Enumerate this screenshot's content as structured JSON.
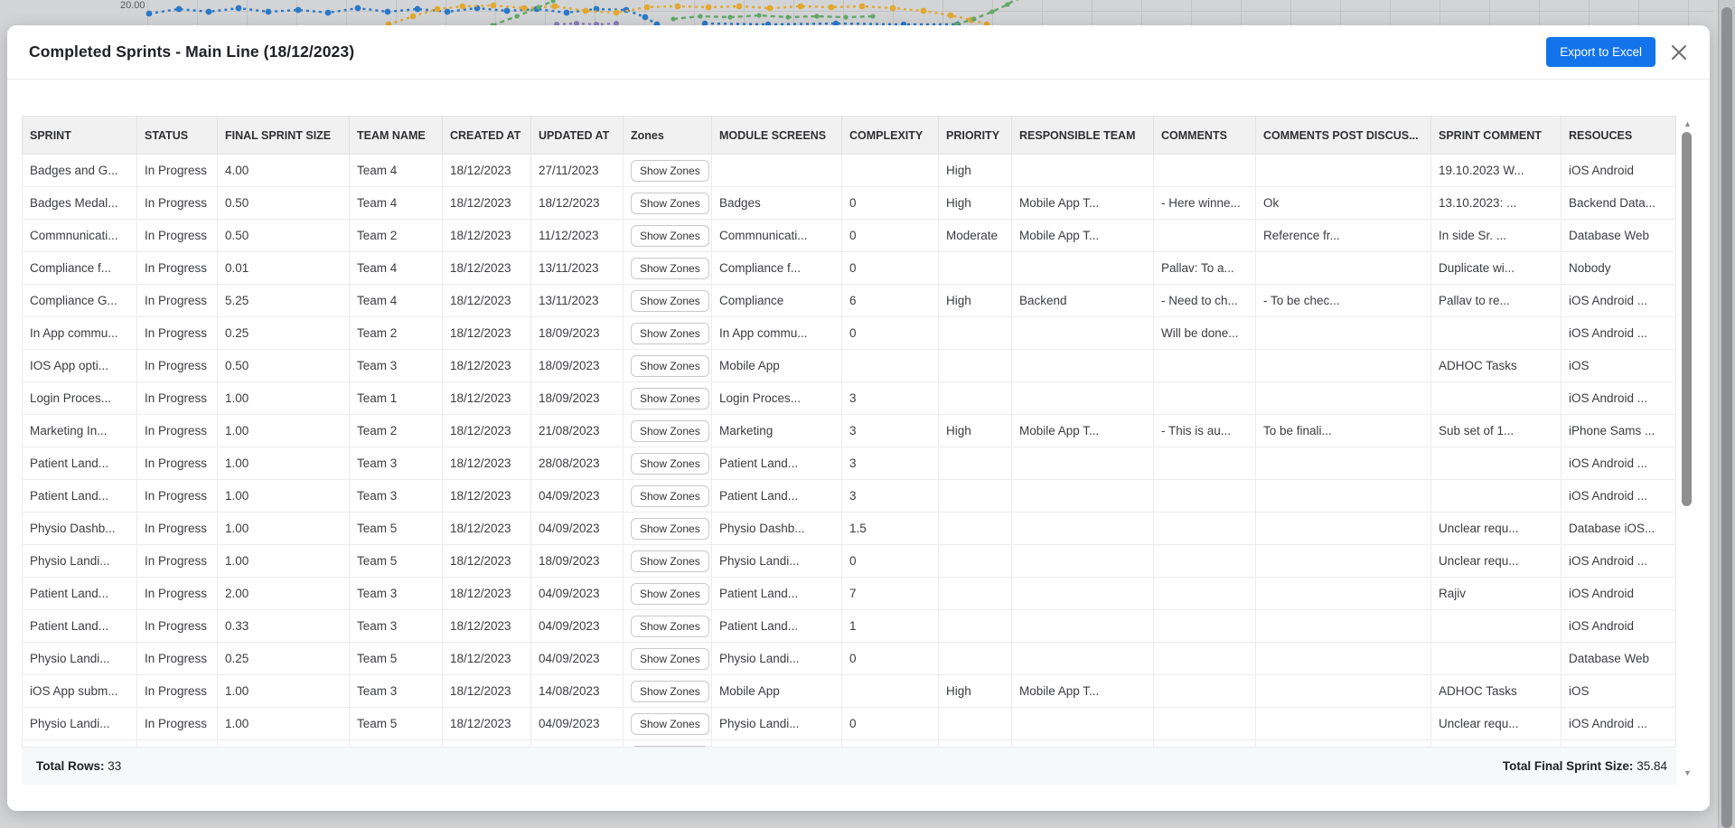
{
  "background_chart": {
    "axis_label": "20.00",
    "series_colors": {
      "blue": "#2979c8",
      "yellow": "#e2a92f",
      "green": "#63a86a",
      "purple": "#8b7fb8"
    }
  },
  "modal": {
    "title": "Completed Sprints - Main Line (18/12/2023)",
    "export_button": "Export to Excel"
  },
  "table": {
    "columns": [
      "SPRINT",
      "STATUS",
      "FINAL SPRINT SIZE",
      "TEAM NAME",
      "CREATED AT",
      "UPDATED AT",
      "Zones",
      "MODULE SCREENS",
      "COMPLEXITY",
      "PRIORITY",
      "RESPONSIBLE TEAM",
      "COMMENTS",
      "COMMENTS POST DISCUS...",
      "SPRINT COMMENT",
      "RESOUCES"
    ],
    "zones_button_label": "Show Zones",
    "has_partial_row": true,
    "rows": [
      {
        "sprint": "Badges and G...",
        "status": "In Progress",
        "final_sprint_size": "4.00",
        "team_name": "Team 4",
        "created_at": "18/12/2023",
        "updated_at": "27/11/2023",
        "module_screens": "",
        "complexity": "",
        "priority": "High",
        "responsible_team": "",
        "comments": "",
        "comments_post_discussion": "",
        "sprint_comment": "19.10.2023 W...",
        "resources": "iOS Android"
      },
      {
        "sprint": "Badges Medal...",
        "status": "In Progress",
        "final_sprint_size": "0.50",
        "team_name": "Team 4",
        "created_at": "18/12/2023",
        "updated_at": "18/12/2023",
        "module_screens": "Badges",
        "complexity": "0",
        "priority": "High",
        "responsible_team": "Mobile App T...",
        "comments": "- Here winne...",
        "comments_post_discussion": "Ok",
        "sprint_comment": "13.10.2023: ...",
        "resources": "Backend Data..."
      },
      {
        "sprint": "Commnunicati...",
        "status": "In Progress",
        "final_sprint_size": "0.50",
        "team_name": "Team 2",
        "created_at": "18/12/2023",
        "updated_at": "11/12/2023",
        "module_screens": "Commnunicati...",
        "complexity": "0",
        "priority": "Moderate",
        "responsible_team": "Mobile App T...",
        "comments": "",
        "comments_post_discussion": "Reference fr...",
        "sprint_comment": "In side Sr. ...",
        "resources": "Database Web"
      },
      {
        "sprint": "Compliance f...",
        "status": "In Progress",
        "final_sprint_size": "0.01",
        "team_name": "Team 4",
        "created_at": "18/12/2023",
        "updated_at": "13/11/2023",
        "module_screens": "Compliance f...",
        "complexity": "0",
        "priority": "",
        "responsible_team": "",
        "comments": "Pallav: To a...",
        "comments_post_discussion": "",
        "sprint_comment": "Duplicate wi...",
        "resources": "Nobody"
      },
      {
        "sprint": "Compliance G...",
        "status": "In Progress",
        "final_sprint_size": "5.25",
        "team_name": "Team 4",
        "created_at": "18/12/2023",
        "updated_at": "13/11/2023",
        "module_screens": "Compliance",
        "complexity": "6",
        "priority": "High",
        "responsible_team": "Backend",
        "comments": "- Need to ch...",
        "comments_post_discussion": "- To be chec...",
        "sprint_comment": "Pallav to re...",
        "resources": "iOS Android ..."
      },
      {
        "sprint": "In App commu...",
        "status": "In Progress",
        "final_sprint_size": "0.25",
        "team_name": "Team 2",
        "created_at": "18/12/2023",
        "updated_at": "18/09/2023",
        "module_screens": "In App commu...",
        "complexity": "0",
        "priority": "",
        "responsible_team": "",
        "comments": "Will be done...",
        "comments_post_discussion": "",
        "sprint_comment": "",
        "resources": "iOS Android ..."
      },
      {
        "sprint": "IOS App opti...",
        "status": "In Progress",
        "final_sprint_size": "0.50",
        "team_name": "Team 3",
        "created_at": "18/12/2023",
        "updated_at": "18/09/2023",
        "module_screens": "Mobile App",
        "complexity": "",
        "priority": "",
        "responsible_team": "",
        "comments": "",
        "comments_post_discussion": "",
        "sprint_comment": "ADHOC Tasks",
        "resources": "iOS"
      },
      {
        "sprint": "Login Proces...",
        "status": "In Progress",
        "final_sprint_size": "1.00",
        "team_name": "Team 1",
        "created_at": "18/12/2023",
        "updated_at": "18/09/2023",
        "module_screens": "Login Proces...",
        "complexity": "3",
        "priority": "",
        "responsible_team": "",
        "comments": "",
        "comments_post_discussion": "",
        "sprint_comment": "",
        "resources": "iOS Android ..."
      },
      {
        "sprint": "Marketing In...",
        "status": "In Progress",
        "final_sprint_size": "1.00",
        "team_name": "Team 2",
        "created_at": "18/12/2023",
        "updated_at": "21/08/2023",
        "module_screens": "Marketing",
        "complexity": "3",
        "priority": "High",
        "responsible_team": "Mobile App T...",
        "comments": "- This is au...",
        "comments_post_discussion": "To be finali...",
        "sprint_comment": "Sub set of 1...",
        "resources": "iPhone Sams ..."
      },
      {
        "sprint": "Patient Land...",
        "status": "In Progress",
        "final_sprint_size": "1.00",
        "team_name": "Team 3",
        "created_at": "18/12/2023",
        "updated_at": "28/08/2023",
        "module_screens": "Patient Land...",
        "complexity": "3",
        "priority": "",
        "responsible_team": "",
        "comments": "",
        "comments_post_discussion": "",
        "sprint_comment": "",
        "resources": "iOS Android ..."
      },
      {
        "sprint": "Patient Land...",
        "status": "In Progress",
        "final_sprint_size": "1.00",
        "team_name": "Team 3",
        "created_at": "18/12/2023",
        "updated_at": "04/09/2023",
        "module_screens": "Patient Land...",
        "complexity": "3",
        "priority": "",
        "responsible_team": "",
        "comments": "",
        "comments_post_discussion": "",
        "sprint_comment": "",
        "resources": "iOS Android ..."
      },
      {
        "sprint": "Physio Dashb...",
        "status": "In Progress",
        "final_sprint_size": "1.00",
        "team_name": "Team 5",
        "created_at": "18/12/2023",
        "updated_at": "04/09/2023",
        "module_screens": "Physio Dashb...",
        "complexity": "1.5",
        "priority": "",
        "responsible_team": "",
        "comments": "",
        "comments_post_discussion": "",
        "sprint_comment": "Unclear requ...",
        "resources": "Database iOS..."
      },
      {
        "sprint": "Physio Landi...",
        "status": "In Progress",
        "final_sprint_size": "1.00",
        "team_name": "Team 5",
        "created_at": "18/12/2023",
        "updated_at": "18/09/2023",
        "module_screens": "Physio Landi...",
        "complexity": "0",
        "priority": "",
        "responsible_team": "",
        "comments": "",
        "comments_post_discussion": "",
        "sprint_comment": "Unclear requ...",
        "resources": "iOS Android ..."
      },
      {
        "sprint": "Patient Land...",
        "status": "In Progress",
        "final_sprint_size": "2.00",
        "team_name": "Team 3",
        "created_at": "18/12/2023",
        "updated_at": "04/09/2023",
        "module_screens": "Patient Land...",
        "complexity": "7",
        "priority": "",
        "responsible_team": "",
        "comments": "",
        "comments_post_discussion": "",
        "sprint_comment": "Rajiv",
        "resources": "iOS Android"
      },
      {
        "sprint": "Patient Land...",
        "status": "In Progress",
        "final_sprint_size": "0.33",
        "team_name": "Team 3",
        "created_at": "18/12/2023",
        "updated_at": "04/09/2023",
        "module_screens": "Patient Land...",
        "complexity": "1",
        "priority": "",
        "responsible_team": "",
        "comments": "",
        "comments_post_discussion": "",
        "sprint_comment": "",
        "resources": "iOS Android"
      },
      {
        "sprint": "Physio Landi...",
        "status": "In Progress",
        "final_sprint_size": "0.25",
        "team_name": "Team 5",
        "created_at": "18/12/2023",
        "updated_at": "04/09/2023",
        "module_screens": "Physio Landi...",
        "complexity": "0",
        "priority": "",
        "responsible_team": "",
        "comments": "",
        "comments_post_discussion": "",
        "sprint_comment": "",
        "resources": "Database Web"
      },
      {
        "sprint": "iOS App subm...",
        "status": "In Progress",
        "final_sprint_size": "1.00",
        "team_name": "Team 3",
        "created_at": "18/12/2023",
        "updated_at": "14/08/2023",
        "module_screens": "Mobile App",
        "complexity": "",
        "priority": "High",
        "responsible_team": "Mobile App T...",
        "comments": "",
        "comments_post_discussion": "",
        "sprint_comment": "ADHOC Tasks",
        "resources": "iOS"
      },
      {
        "sprint": "Physio Landi...",
        "status": "In Progress",
        "final_sprint_size": "1.00",
        "team_name": "Team 5",
        "created_at": "18/12/2023",
        "updated_at": "04/09/2023",
        "module_screens": "Physio Landi...",
        "complexity": "0",
        "priority": "",
        "responsible_team": "",
        "comments": "",
        "comments_post_discussion": "",
        "sprint_comment": "Unclear requ...",
        "resources": "iOS Android ..."
      }
    ]
  },
  "footer": {
    "total_rows_label": "Total Rows:",
    "total_rows_value": "33",
    "total_final_sprint_size_label": "Total Final Sprint Size:",
    "total_final_sprint_size_value": "35.84"
  }
}
